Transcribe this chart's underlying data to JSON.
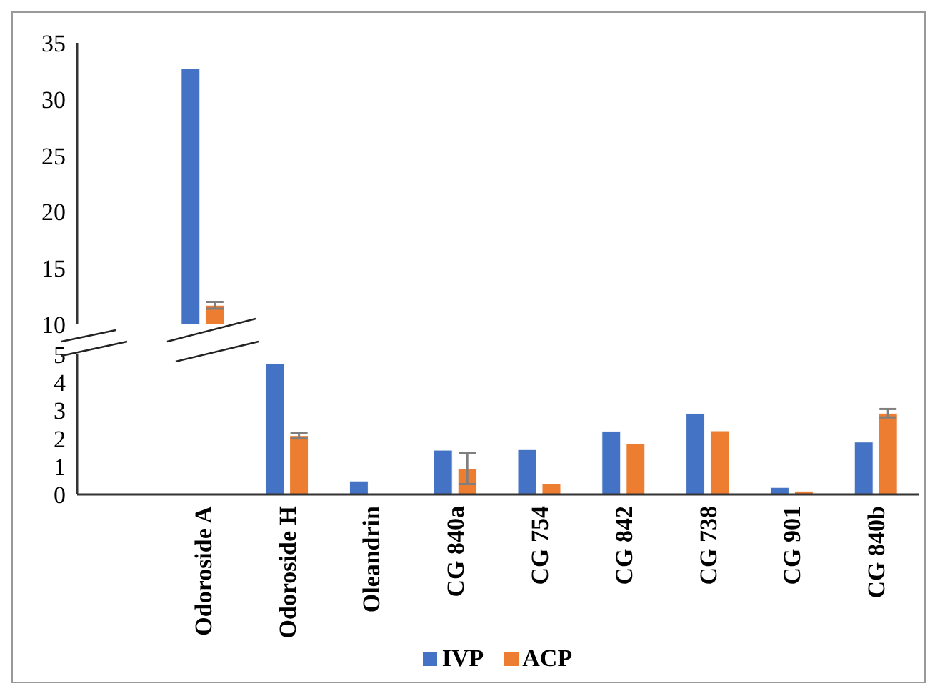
{
  "chart_data": [
    {
      "type": "bar",
      "categories": [
        null,
        "Odoroside A",
        "Odoroside H",
        "Oleandrin",
        "CG 840a",
        "CG 754",
        "CG 842",
        "CG 738",
        "CG 901",
        "CG 840b"
      ],
      "series": [
        {
          "color": "#4472c4",
          "values": [
            null,
            32.7,
            null,
            null,
            null,
            null,
            null,
            null,
            null,
            null
          ]
        },
        {
          "color": "#ed7d31",
          "values": [
            null,
            11.7,
            null,
            null,
            null,
            null,
            null,
            null,
            null,
            null
          ],
          "errors": [
            null,
            0.3,
            null,
            null,
            null,
            null,
            null,
            null,
            null,
            null
          ]
        }
      ],
      "ylim": [
        10,
        35
      ],
      "yticks": [
        10,
        15,
        20,
        25,
        30,
        35
      ],
      "tick_labels": "y"
    },
    {
      "type": "bar",
      "categories": [
        null,
        "Odoroside A",
        "Odoroside H",
        "Oleandrin",
        "CG 840a",
        "CG 754",
        "CG 842",
        "CG 738",
        "CG 901",
        "CG 840b"
      ],
      "series": [
        {
          "name": "IVP",
          "color": "#4472c4",
          "values": [
            null,
            null,
            4.68,
            0.48,
            1.58,
            1.6,
            2.25,
            2.89,
            0.25,
            1.87
          ]
        },
        {
          "name": "ACP",
          "color": "#ed7d31",
          "values": [
            null,
            null,
            2.1,
            0,
            0.92,
            0.38,
            1.81,
            2.27,
            0.12,
            2.9
          ],
          "errors": [
            null,
            null,
            0.1,
            null,
            0.55,
            null,
            null,
            null,
            null,
            0.15
          ]
        }
      ],
      "ylim": [
        0,
        5
      ],
      "yticks": [
        0,
        1,
        2,
        3,
        4,
        5
      ],
      "legend": "bottom"
    }
  ]
}
